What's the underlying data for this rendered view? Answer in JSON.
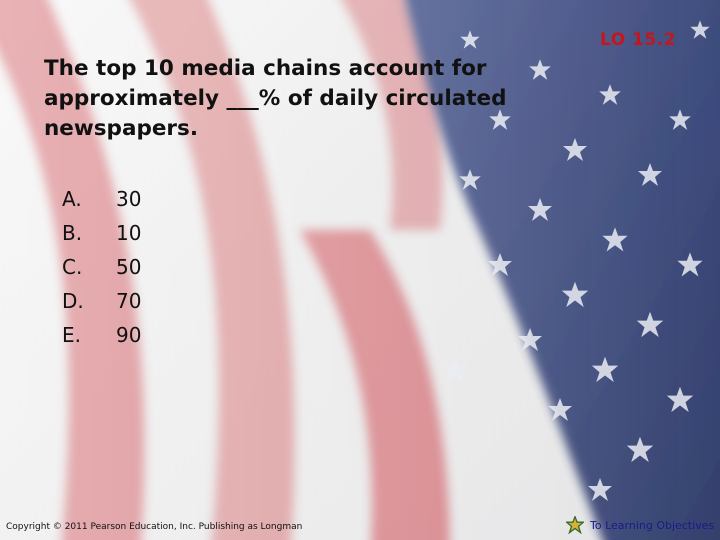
{
  "slide": {
    "lo_label": "LO 15.2",
    "question": "The top 10 media chains account for approximately ___% of daily circulated newspapers.",
    "choices": [
      {
        "letter": "A.",
        "value": "30"
      },
      {
        "letter": "B.",
        "value": "10"
      },
      {
        "letter": "C.",
        "value": "50"
      },
      {
        "letter": "D.",
        "value": "70"
      },
      {
        "letter": "E.",
        "value": "90"
      }
    ],
    "copyright": "Copyright © 2011 Pearson Education, Inc. Publishing as Longman",
    "learning_objectives_link": "To Learning Objectives",
    "link_icon": "star-icon"
  },
  "colors": {
    "lo_label": "#c4161c",
    "stripe_red": "#c8323a",
    "canton_blue": "#2c3c76",
    "link_text": "#1a1a8c"
  }
}
